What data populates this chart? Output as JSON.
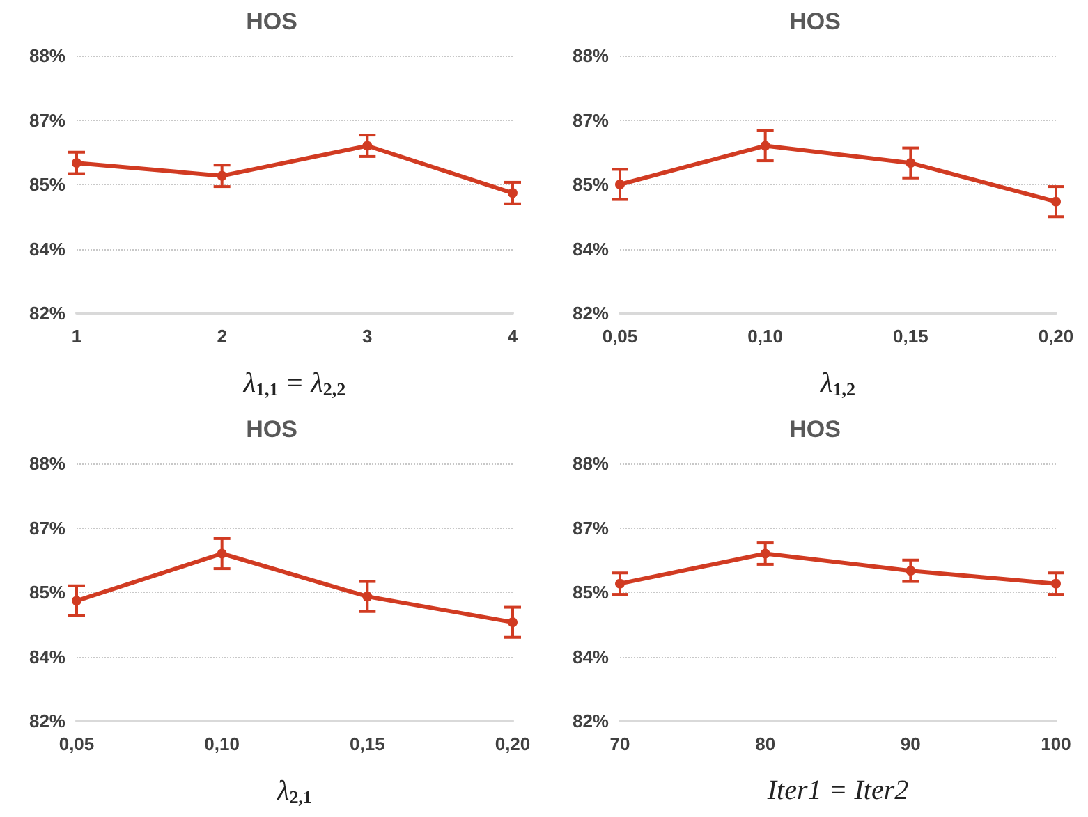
{
  "chart_data": [
    {
      "type": "line",
      "title": "HOS",
      "xlabel": "λ$_{1,1}$ = λ$_{2,2}$",
      "categories": [
        "1",
        "2",
        "3",
        "4"
      ],
      "series": [
        {
          "color": "#d13b22",
          "values": [
            85.5,
            85.2,
            85.9,
            84.8
          ],
          "errors": [
            0.25,
            0.25,
            0.25,
            0.25
          ]
        }
      ],
      "ylim": [
        82,
        88
      ],
      "yticks": [
        {
          "value": 82,
          "label": "82%"
        },
        {
          "value": 83.5,
          "label": "84%"
        },
        {
          "value": 85,
          "label": "85%"
        },
        {
          "value": 86.5,
          "label": "87%"
        },
        {
          "value": 88,
          "label": "88%"
        }
      ],
      "grid": "y",
      "marker": "circle",
      "line_style": "solid"
    },
    {
      "type": "line",
      "title": "HOS",
      "xlabel": "λ$_{1,2}$",
      "categories": [
        "0,05",
        "0,10",
        "0,15",
        "0,20"
      ],
      "series": [
        {
          "color": "#d13b22",
          "values": [
            85.0,
            85.9,
            85.5,
            84.6
          ],
          "errors": [
            0.35,
            0.35,
            0.35,
            0.35
          ]
        }
      ],
      "ylim": [
        82,
        88
      ],
      "yticks": [
        {
          "value": 82,
          "label": "82%"
        },
        {
          "value": 83.5,
          "label": "84%"
        },
        {
          "value": 85,
          "label": "85%"
        },
        {
          "value": 86.5,
          "label": "87%"
        },
        {
          "value": 88,
          "label": "88%"
        }
      ],
      "grid": "y",
      "marker": "circle",
      "line_style": "solid"
    },
    {
      "type": "line",
      "title": "HOS",
      "xlabel": "λ$_{2,1}$",
      "categories": [
        "0,05",
        "0,10",
        "0,15",
        "0,20"
      ],
      "series": [
        {
          "color": "#d13b22",
          "values": [
            84.8,
            85.9,
            84.9,
            84.3
          ],
          "errors": [
            0.35,
            0.35,
            0.35,
            0.35
          ]
        }
      ],
      "ylim": [
        82,
        88
      ],
      "yticks": [
        {
          "value": 82,
          "label": "82%"
        },
        {
          "value": 83.5,
          "label": "84%"
        },
        {
          "value": 85,
          "label": "85%"
        },
        {
          "value": 86.5,
          "label": "87%"
        },
        {
          "value": 88,
          "label": "88%"
        }
      ],
      "grid": "y",
      "marker": "circle",
      "line_style": "solid"
    },
    {
      "type": "line",
      "title": "HOS",
      "xlabel": "Iter1 = Iter2",
      "categories": [
        "70",
        "80",
        "90",
        "100"
      ],
      "series": [
        {
          "color": "#d13b22",
          "values": [
            85.2,
            85.9,
            85.5,
            85.2
          ],
          "errors": [
            0.25,
            0.25,
            0.25,
            0.25
          ]
        }
      ],
      "ylim": [
        82,
        88
      ],
      "yticks": [
        {
          "value": 82,
          "label": "82%"
        },
        {
          "value": 83.5,
          "label": "84%"
        },
        {
          "value": 85,
          "label": "85%"
        },
        {
          "value": 86.5,
          "label": "87%"
        },
        {
          "value": 88,
          "label": "88%"
        }
      ],
      "grid": "y",
      "marker": "circle",
      "line_style": "solid"
    }
  ]
}
